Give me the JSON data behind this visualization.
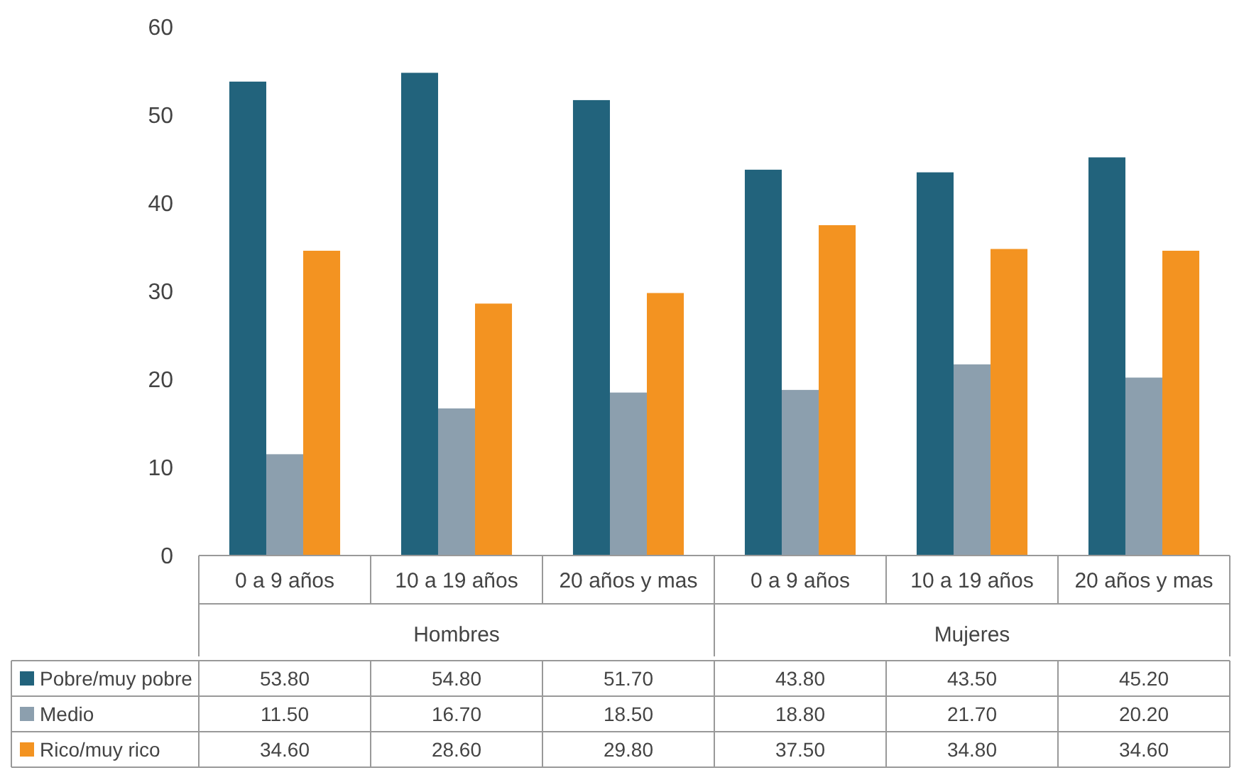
{
  "chart_data": {
    "type": "bar",
    "categories": [
      "0 a 9 años",
      "10 a 19 años",
      "20 años y mas",
      "0 a 9 años",
      "10 a 19 años",
      "20 años y mas"
    ],
    "annotations": [
      "Hombres",
      "Mujeres"
    ],
    "series": [
      {
        "name": "Pobre/muy pobre",
        "color": "#22637c",
        "values": [
          53.8,
          54.8,
          51.7,
          43.8,
          43.5,
          45.2
        ],
        "value_labels": [
          "53.80",
          "54.80",
          "51.70",
          "43.80",
          "43.50",
          "45.20"
        ]
      },
      {
        "name": "Medio",
        "color": "#8c9fae",
        "values": [
          11.5,
          16.7,
          18.5,
          18.8,
          21.7,
          20.2
        ],
        "value_labels": [
          "11.50",
          "16.70",
          "18.50",
          "18.80",
          "21.70",
          "20.20"
        ]
      },
      {
        "name": "Rico/muy rico",
        "color": "#f39321",
        "values": [
          34.6,
          28.6,
          29.8,
          37.5,
          34.8,
          34.6
        ],
        "value_labels": [
          "34.60",
          "28.60",
          "29.80",
          "37.50",
          "34.80",
          "34.60"
        ]
      }
    ],
    "ylim": [
      0,
      60
    ],
    "yticks": [
      0,
      10,
      20,
      30,
      40,
      50,
      60
    ],
    "legend": "bottom"
  }
}
